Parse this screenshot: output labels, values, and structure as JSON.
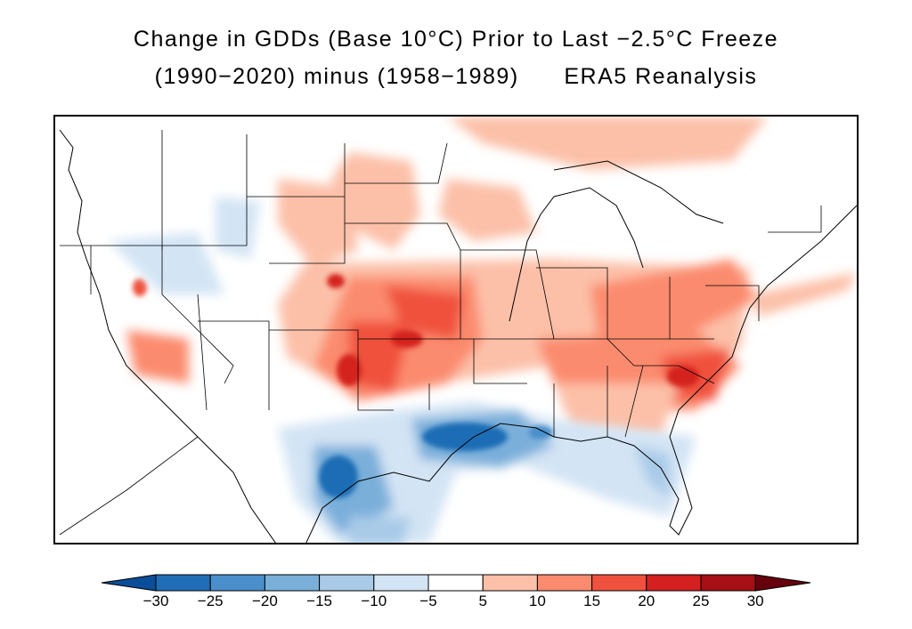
{
  "title": {
    "line1": "Change in GDDs (Base 10°C) Prior to Last −2.5°C Freeze",
    "line2": "(1990−2020) minus (1958−1989)      ERA5 Reanalysis"
  },
  "colorbar": {
    "levels": [
      -30,
      -25,
      -20,
      -15,
      -10,
      -5,
      5,
      10,
      15,
      20,
      25,
      30
    ],
    "tick_labels": [
      "−30",
      "−25",
      "−20",
      "−15",
      "−10",
      "−5",
      "5",
      "10",
      "15",
      "20",
      "25",
      "30"
    ],
    "colors": [
      "#0b4d99",
      "#1f6db5",
      "#4a8fcb",
      "#7aafda",
      "#a9cbe8",
      "#d3e4f4",
      "#ffffff",
      "#fcc0a8",
      "#fb8b6e",
      "#f0513e",
      "#d4201f",
      "#a50f15",
      "#67000d"
    ]
  },
  "map": {
    "region": "Contiguous United States",
    "lon_range": [
      -125,
      -66
    ],
    "lat_range": [
      24,
      50
    ]
  }
}
